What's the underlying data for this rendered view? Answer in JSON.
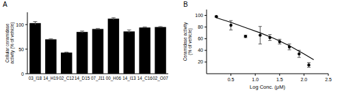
{
  "chart_data": [
    {
      "type": "bar",
      "title": "A",
      "y_label": "Cellular ceramidase activity (% of vehicle)",
      "categories": [
        "03_I18",
        "14_H19",
        "02_C12",
        "14_D15",
        "07_J11",
        "00_H06",
        "14_I13",
        "14_C16",
        "02_O07"
      ],
      "values": [
        103,
        70,
        43,
        85,
        91,
        112,
        86,
        94,
        95
      ],
      "errors": [
        3,
        1,
        1,
        2,
        1,
        2,
        3,
        1,
        1
      ],
      "color": "#000000",
      "ylim": [
        0,
        125
      ],
      "yticks": [
        0,
        50,
        100
      ],
      "grid": false
    },
    {
      "type": "scatter",
      "title": "B",
      "x_label": "Log Conc. (μM)",
      "y_label": "Ceramidase activity (% of vehicle)",
      "series": [
        {
          "type": "scatter",
          "marker": "circle",
          "color": "#000000",
          "x": [
            0.2,
            0.5,
            0.8,
            1.1,
            1.3,
            1.5,
            1.7,
            1.9,
            2.1
          ],
          "values": [
            98,
            83,
            64,
            66,
            62,
            55,
            46,
            34,
            15
          ],
          "errors": [
            1,
            8,
            2,
            15,
            5,
            4,
            5,
            6,
            4
          ]
        },
        {
          "type": "line",
          "line_style": "solid",
          "color": "#000000",
          "x": [
            0.2,
            0.5,
            0.8,
            1.1,
            1.4,
            1.7,
            2.0,
            2.2
          ],
          "values": [
            96,
            88,
            79,
            70,
            60,
            48,
            34,
            24
          ]
        }
      ],
      "xlim": [
        0,
        2.5
      ],
      "xticks": [
        0.5,
        {
          "value": 1,
          "label": "1.0"
        },
        1.5,
        {
          "value": 2,
          "label": "2.0"
        },
        2.5
      ],
      "ylim": [
        0,
        110
      ],
      "yticks": [
        20,
        40,
        60,
        80,
        100
      ],
      "grid": false
    }
  ]
}
